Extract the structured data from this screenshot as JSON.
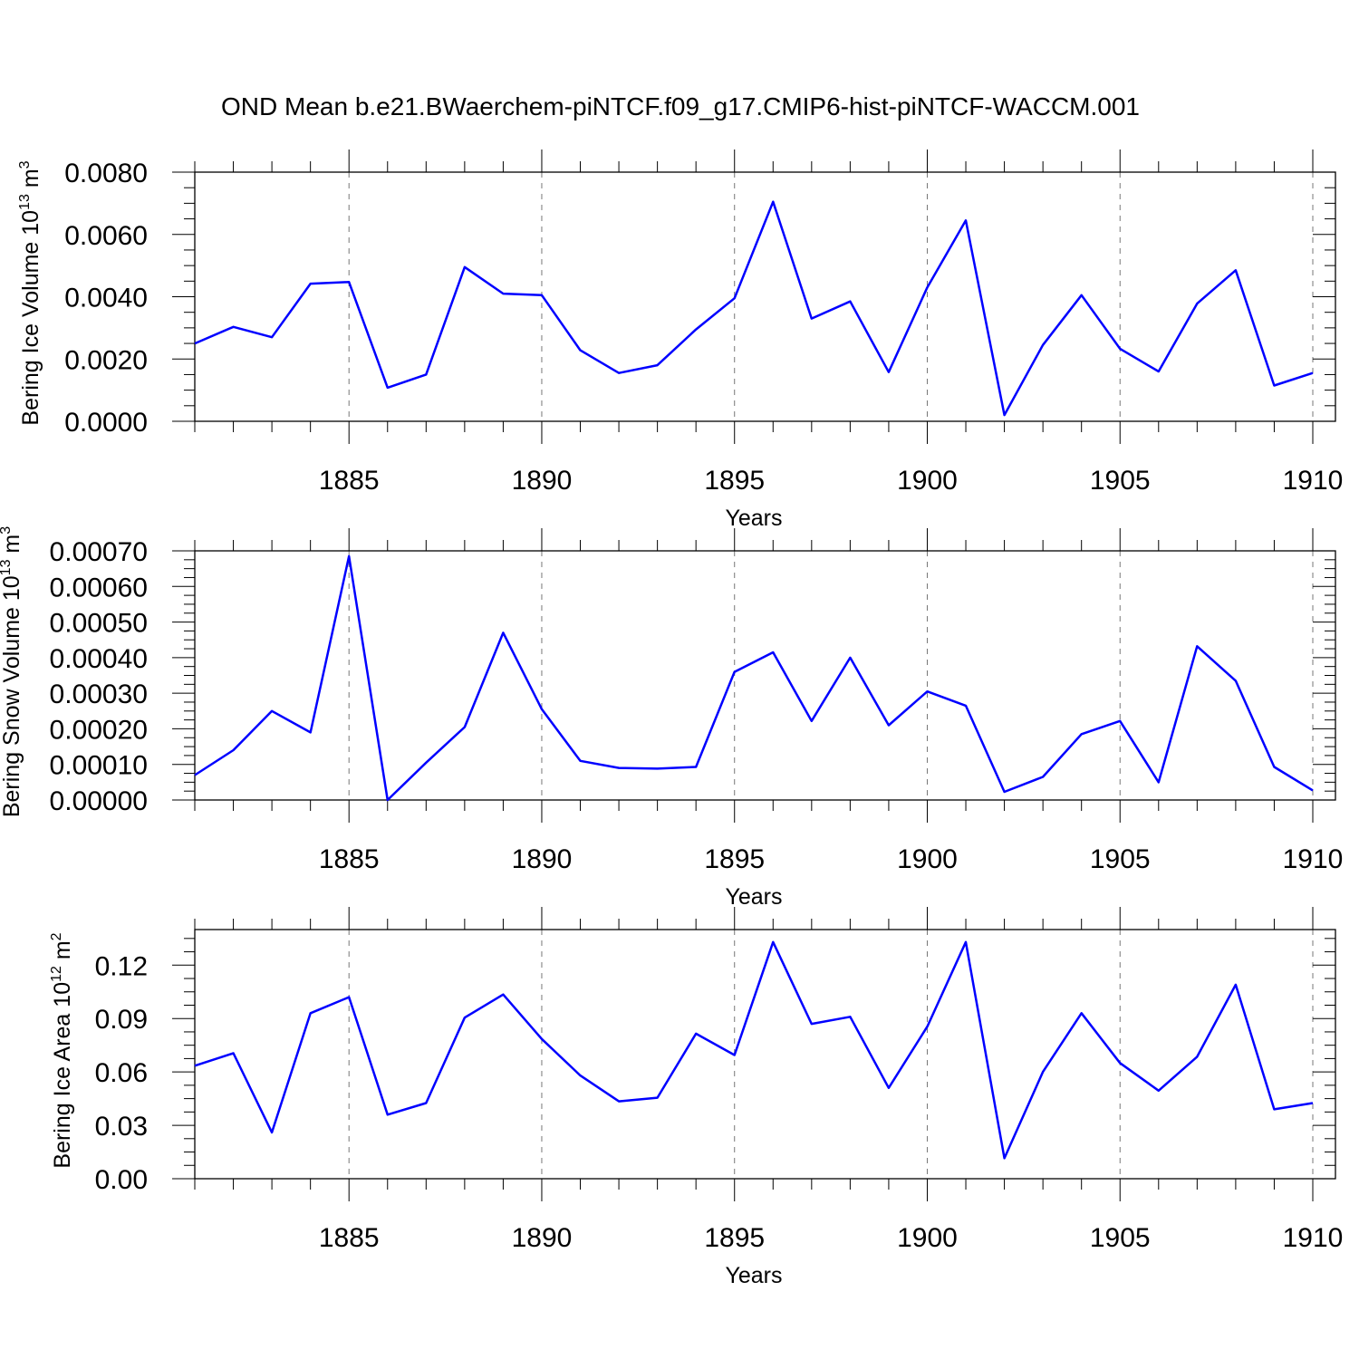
{
  "chart_data": {
    "title": "OND Mean b.e21.BWaerchem-piNTCF.f09_g17.CMIP6-hist-piNTCF-WACCM.001",
    "xlabel": "Years",
    "xlim": [
      1881,
      1910
    ],
    "xticks": [
      "1885",
      "1890",
      "1895",
      "1900",
      "1905",
      "1910"
    ],
    "x": [
      1881,
      1882,
      1883,
      1884,
      1885,
      1886,
      1887,
      1888,
      1889,
      1890,
      1891,
      1892,
      1893,
      1894,
      1895,
      1896,
      1897,
      1898,
      1899,
      1900,
      1901,
      1902,
      1903,
      1904,
      1905,
      1906,
      1907,
      1908,
      1909,
      1910
    ],
    "line_color": "#0000ff",
    "panels": [
      {
        "type": "line",
        "name": "ice-volume",
        "ylabel": {
          "text": "Bering Ice Volume 10",
          "sup": "13",
          "unit": " m",
          "unit_sup": "3"
        },
        "ylim": [
          0,
          0.008
        ],
        "yticks": [
          "0.0000",
          "0.0020",
          "0.0040",
          "0.0060",
          "0.0080"
        ],
        "values": [
          0.0025,
          0.00303,
          0.0027,
          0.00442,
          0.00447,
          0.00108,
          0.0015,
          0.00495,
          0.0041,
          0.00405,
          0.00228,
          0.00155,
          0.0018,
          0.00295,
          0.00395,
          0.00705,
          0.0033,
          0.00385,
          0.00158,
          0.0043,
          0.00645,
          0.0002,
          0.00245,
          0.00405,
          0.00233,
          0.0016,
          0.00378,
          0.00485,
          0.00115,
          0.00155
        ]
      },
      {
        "type": "line",
        "name": "snow-volume",
        "ylabel": {
          "text": "Bering Snow Volume 10",
          "sup": "13",
          "unit": " m",
          "unit_sup": "3"
        },
        "ylim": [
          0,
          0.0007
        ],
        "yticks": [
          "0.00000",
          "0.00010",
          "0.00020",
          "0.00030",
          "0.00040",
          "0.00050",
          "0.00060",
          "0.00070"
        ],
        "values": [
          7e-05,
          0.00014,
          0.00025,
          0.00019,
          0.000685,
          0.0,
          0.000105,
          0.000205,
          0.00047,
          0.000255,
          0.00011,
          9e-05,
          8.8e-05,
          9.3e-05,
          0.00036,
          0.000415,
          0.000222,
          0.0004,
          0.00021,
          0.000305,
          0.000265,
          2.3e-05,
          6.5e-05,
          0.000185,
          0.000222,
          5e-05,
          0.000432,
          0.000335,
          9.3e-05,
          2.7e-05
        ]
      },
      {
        "type": "line",
        "name": "ice-area",
        "ylabel": {
          "text": "Bering Ice Area 10",
          "sup": "12",
          "unit": " m",
          "unit_sup": "2"
        },
        "ylim": [
          0,
          0.14
        ],
        "yticks": [
          "0.00",
          "0.03",
          "0.06",
          "0.09",
          "0.12"
        ],
        "values": [
          0.0635,
          0.0705,
          0.026,
          0.093,
          0.102,
          0.036,
          0.0425,
          0.0905,
          0.1035,
          0.0785,
          0.058,
          0.0435,
          0.0455,
          0.0815,
          0.0695,
          0.133,
          0.087,
          0.091,
          0.051,
          0.0855,
          0.133,
          0.0115,
          0.06,
          0.093,
          0.065,
          0.0495,
          0.0685,
          0.109,
          0.039,
          0.0425
        ]
      }
    ]
  }
}
